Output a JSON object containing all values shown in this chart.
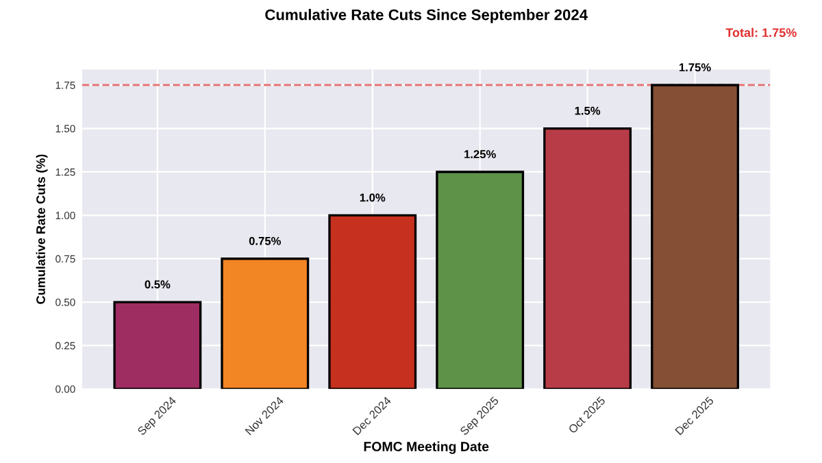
{
  "chart_data": {
    "type": "bar",
    "title": "Cumulative Rate Cuts Since September 2024",
    "xlabel": "FOMC Meeting Date",
    "ylabel": "Cumulative Rate Cuts (%)",
    "categories": [
      "Sep 2024",
      "Nov 2024",
      "Dec 2024",
      "Sep 2025",
      "Oct 2025",
      "Dec 2025"
    ],
    "values": [
      0.5,
      0.75,
      1.0,
      1.25,
      1.5,
      1.75
    ],
    "colors": [
      "#9e2d62",
      "#f28524",
      "#c6301e",
      "#5e9248",
      "#b83c48",
      "#844f35"
    ],
    "value_labels": [
      "0.5%",
      "0.75%",
      "1.0%",
      "1.25%",
      "1.5%",
      "1.75%"
    ],
    "ylim": [
      0,
      1.84
    ],
    "yticks": [
      {
        "value": 0,
        "label": "0.00"
      },
      0.25,
      {
        "value": 0.5,
        "label": "0.50"
      },
      0.75,
      {
        "value": 1,
        "label": "1.00"
      },
      1.25,
      {
        "value": 1.5,
        "label": "1.50"
      },
      1.75
    ],
    "ref_lines": [
      {
        "axis": "y",
        "value": 1.75,
        "label": "Total: 1.75%",
        "color": "#e03030",
        "line_style": "dashed"
      }
    ],
    "grid": true,
    "legend": false
  }
}
